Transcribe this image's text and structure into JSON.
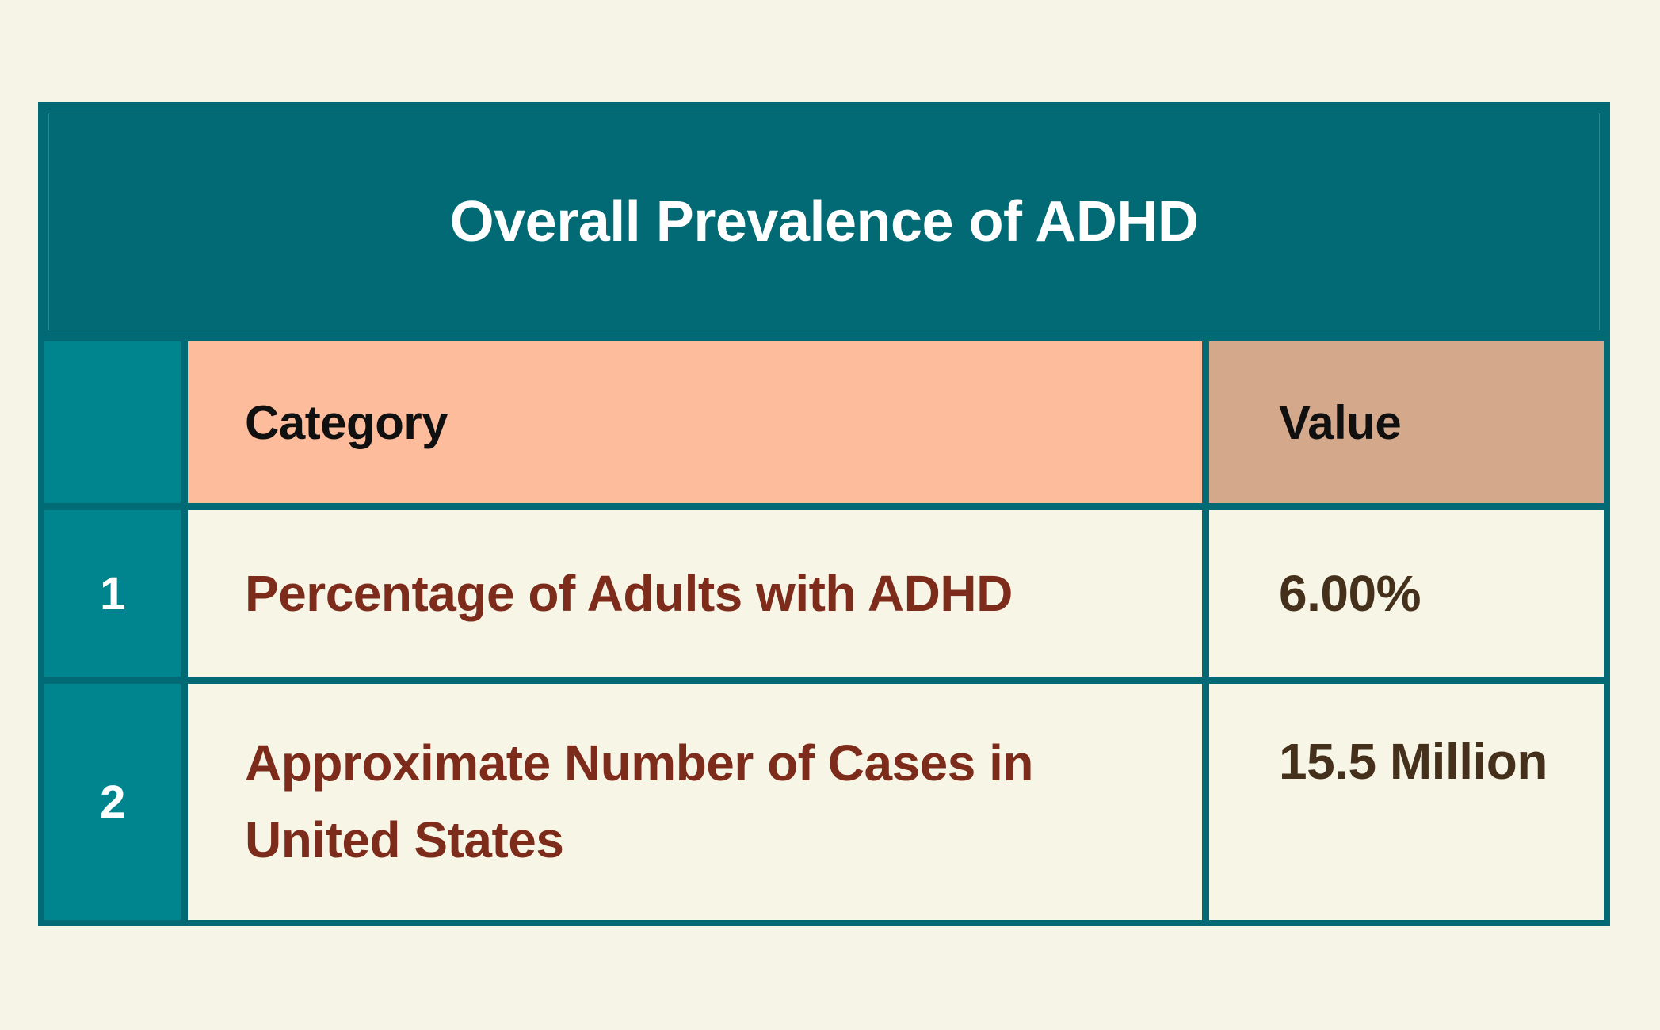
{
  "table": {
    "title": "Overall Prevalence of ADHD",
    "columns": {
      "category_label": "Category",
      "value_label": "Value"
    },
    "rows": [
      {
        "index": "1",
        "category_lines": [
          "Percentage of Adults with ADHD"
        ],
        "value": "6.00%"
      },
      {
        "index": "2",
        "category_lines": [
          "Approximate Number of Cases in",
          "United States"
        ],
        "value": "15.5 Million"
      }
    ],
    "colors": {
      "page_background": "#f6f4e7",
      "band_and_borders_teal": "#016a74",
      "row_number_teal": "#00858f",
      "category_header_salmon": "#fdbd9c",
      "value_header_tan": "#d4a88a",
      "cell_cream": "#f7f5e6",
      "category_text_maroon": "#7d2b1a",
      "value_text_brown": "#44301b",
      "title_text": "#ffffff",
      "header_text": "#101010"
    }
  },
  "chart_data": {
    "type": "table",
    "title": "Overall Prevalence of ADHD",
    "columns": [
      "",
      "Category",
      "Value"
    ],
    "rows": [
      [
        "1",
        "Percentage of Adults with ADHD",
        "6.00%"
      ],
      [
        "2",
        "Approximate Number of Cases in United States",
        "15.5 Million"
      ]
    ]
  }
}
